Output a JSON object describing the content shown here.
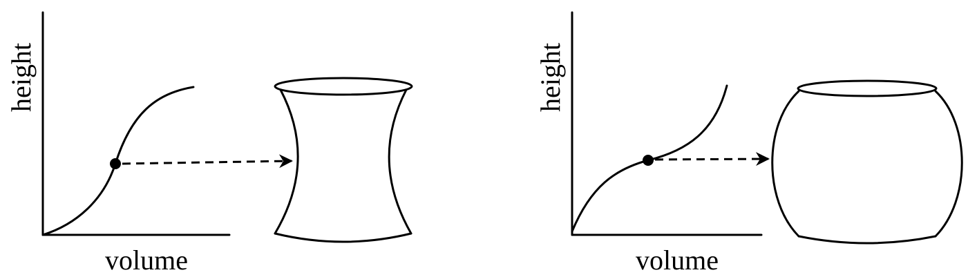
{
  "panels": [
    {
      "id": "left",
      "xlabel": "volume",
      "ylabel": "height",
      "curve_shape": "concave-down inflection",
      "container_shape": "hourglass"
    },
    {
      "id": "right",
      "xlabel": "volume",
      "ylabel": "height",
      "curve_shape": "concave-up inflection",
      "container_shape": "barrel"
    }
  ],
  "colors": {
    "ink": "#000000",
    "background": "#ffffff"
  }
}
